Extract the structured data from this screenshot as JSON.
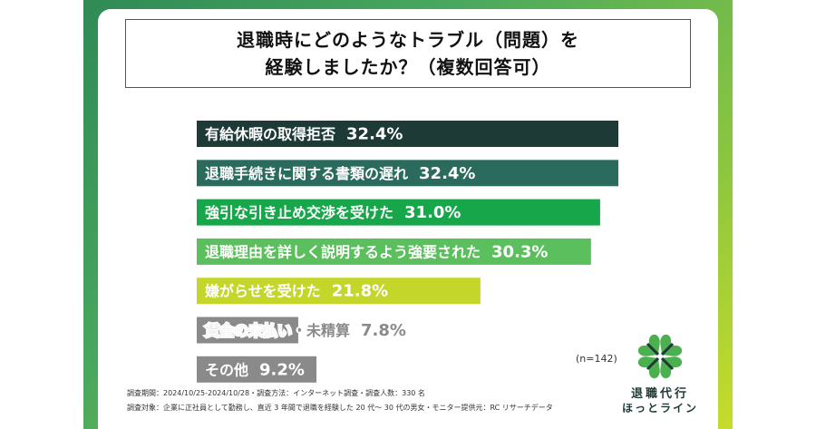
{
  "title": {
    "line1": "退職時にどのようなトラブル（問題）を",
    "line2": "経験しましたか？（複数回答可）"
  },
  "chart_data": {
    "type": "bar",
    "orientation": "horizontal",
    "categories": [
      "有給休暇の取得拒否",
      "退職手続きに関する書類の遅れ",
      "強引な引き止め交渉を受けた",
      "退職理由を詳しく説明するよう強要された",
      "嫌がらせを受けた",
      "賃金の未払い・未精算",
      "その他"
    ],
    "values": [
      32.4,
      32.4,
      31.0,
      30.3,
      21.8,
      7.8,
      9.2
    ],
    "value_labels": [
      "32.4%",
      "32.4%",
      "31.0%",
      "30.3%",
      "21.8%",
      "7.8%",
      "9.2%"
    ],
    "colors": [
      "#1d3a36",
      "#2a6b5e",
      "#17a64a",
      "#5cbf5e",
      "#c4d62a",
      "#8a8a8a",
      "#8a8a8a"
    ],
    "xlim": [
      0,
      32.4
    ]
  },
  "sample_note": "(n=142)",
  "footnotes": {
    "line1": "調査期間：2024/10/25-2024/10/28・調査方法：インターネット調査・調査人数：330 名",
    "line2": "調査対象：企業に正社員として勤務し、直近 3 年間で退職を経験した 20 代～ 30 代の男女・モニター提供元：RC リサーチデータ"
  },
  "logo": {
    "line1": "退職代行",
    "line2": "ほっとライン"
  }
}
